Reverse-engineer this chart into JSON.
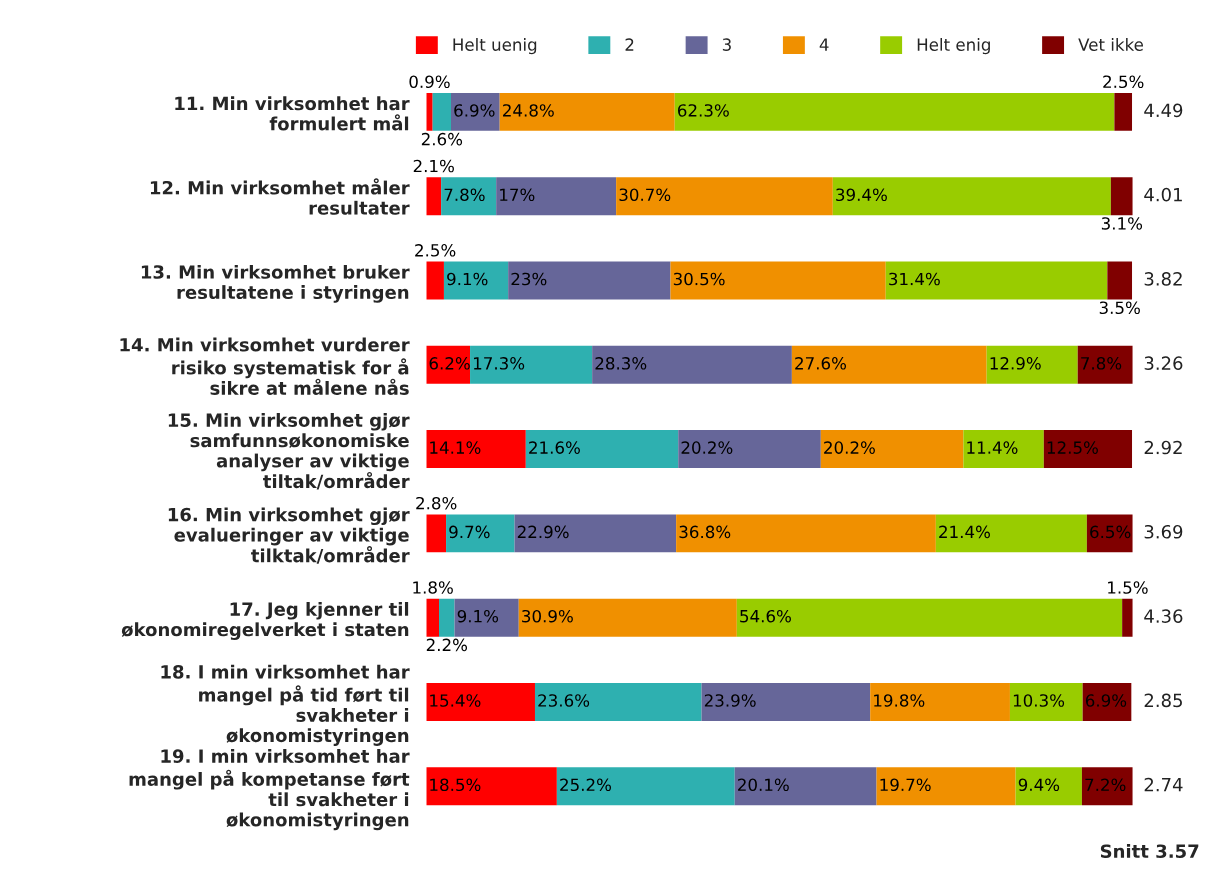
{
  "chart_data": {
    "type": "bar",
    "orientation": "horizontal",
    "stacked": true,
    "legend": "top",
    "tick_labels": "y",
    "grid": false,
    "categories": [
      "11. Min virksomhet har\nformulert mål",
      "12. Min virksomhet måler\nresultater",
      "13. Min virksomhet bruker\nresultatene i styringen",
      "14. Min virksomhet vurderer\nrisiko systematisk for å\nsikre at målene nås",
      "15. Min virksomhet gjør\nsamfunnsøkonomiske\nanalyser av viktige\ntiltak/områder",
      "16. Min virksomhet gjør\nevalueringer av viktige\ntilktak/områder",
      "17. Jeg kjenner til\nøkonomiregelverket i staten",
      "18. I min virksomhet har\nmangel på tid ført til\nsvakheter i\nøkonomistyringen",
      "19. I min virksomhet har\nmangel på kompetanse ført\ntil svakheter i\nøkonomistyringen"
    ],
    "series": [
      {
        "name": "Helt uenig",
        "color": "#ff0000",
        "values": [
          0.9,
          2.1,
          2.5,
          6.2,
          14.1,
          2.8,
          1.8,
          15.4,
          18.5
        ],
        "value_labels": [
          "0.9%",
          "2.1%",
          "2.5%",
          "6.2%",
          "14.1%",
          "2.8%",
          "1.8%",
          "15.4%",
          "18.5%"
        ]
      },
      {
        "name": "2",
        "color": "#2eb0b0",
        "values": [
          2.6,
          7.8,
          9.1,
          17.3,
          21.6,
          9.7,
          2.2,
          23.6,
          25.2
        ],
        "value_labels": [
          "2.6%",
          "7.8%",
          "9.1%",
          "17.3%",
          "21.6%",
          "9.7%",
          "2.2%",
          "23.6%",
          "25.2%"
        ]
      },
      {
        "name": "3",
        "color": "#666699",
        "values": [
          6.9,
          17,
          23,
          28.3,
          20.2,
          22.9,
          9.1,
          23.9,
          20.1
        ],
        "value_labels": [
          "6.9%",
          "17%",
          "23%",
          "28.3%",
          "20.2%",
          "22.9%",
          "9.1%",
          "23.9%",
          "20.1%"
        ]
      },
      {
        "name": "4",
        "color": "#f09000",
        "values": [
          24.8,
          30.7,
          30.5,
          27.6,
          20.2,
          36.8,
          30.9,
          19.8,
          19.7
        ],
        "value_labels": [
          "24.8%",
          "30.7%",
          "30.5%",
          "27.6%",
          "20.2%",
          "36.8%",
          "30.9%",
          "19.8%",
          "19.7%"
        ]
      },
      {
        "name": "Helt enig",
        "color": "#99cc00",
        "values": [
          62.3,
          39.4,
          31.4,
          12.9,
          11.4,
          21.4,
          54.6,
          10.3,
          9.4
        ],
        "value_labels": [
          "62.3%",
          "39.4%",
          "31.4%",
          "12.9%",
          "11.4%",
          "21.4%",
          "54.6%",
          "10.3%",
          "9.4%"
        ]
      },
      {
        "name": "Vet ikke",
        "color": "#800000",
        "values": [
          2.5,
          3.1,
          3.5,
          7.8,
          12.5,
          6.5,
          1.5,
          6.9,
          7.2
        ],
        "value_labels": [
          "2.5%",
          "3.1%",
          "3.5%",
          "7.8%",
          "12.5%",
          "6.5%",
          "1.5%",
          "6.9%",
          "7.2%"
        ]
      }
    ],
    "annotations": [
      "4.49",
      "4.01",
      "3.82",
      "3.26",
      "2.92",
      "3.69",
      "4.36",
      "2.85",
      "2.74",
      "Snitt 3.57"
    ]
  }
}
